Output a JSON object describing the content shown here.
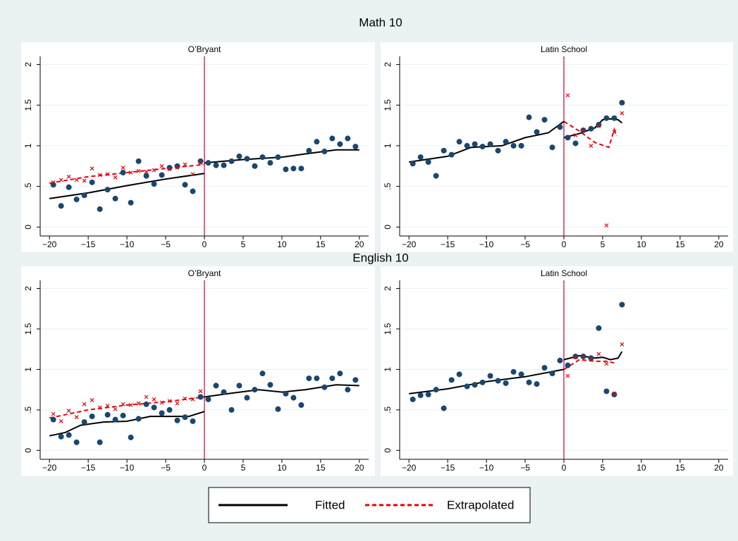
{
  "chart_data": [
    {
      "type": "scatter",
      "group_title": "Math 10",
      "title": "O’Bryant",
      "xlim": [
        -21.2,
        21.2
      ],
      "ylim": [
        -0.11,
        2.1
      ],
      "xticks": [
        {
          "value": -20,
          "label": "−20"
        },
        {
          "value": -15,
          "label": "−15"
        },
        {
          "value": -10,
          "label": "−10"
        },
        {
          "value": -5,
          "label": "−5"
        },
        0,
        5,
        10,
        15,
        20
      ],
      "yticks": [
        0,
        {
          "value": 0.5,
          "label": ".5"
        },
        1,
        1.5,
        2
      ],
      "grid": true,
      "vline": 0,
      "vline_color": "#c10534",
      "series": [
        {
          "name": "Fitted",
          "color": "#000000",
          "style": "solid",
          "x": [
            -20,
            -15,
            -10,
            -5,
            0,
            0,
            0,
            5,
            10,
            13,
            17,
            20
          ],
          "values": [
            0.35,
            0.42,
            0.51,
            0.59,
            0.66,
            null,
            0.79,
            0.83,
            0.86,
            0.9,
            0.95,
            0.95
          ]
        },
        {
          "name": "Extrapolated",
          "color": "#e8000b",
          "style": "dashed",
          "x": [
            -20,
            -15,
            -10,
            -5,
            0
          ],
          "values": [
            0.54,
            0.62,
            0.67,
            0.72,
            0.77
          ]
        },
        {
          "marker": "circle",
          "color": "#1a476f",
          "x": [
            -19.5,
            -18.5,
            -17.5,
            -16.5,
            -15.5,
            -14.5,
            -13.5,
            -12.5,
            -11.5,
            -10.5,
            -9.5,
            -8.5,
            -7.5,
            -6.5,
            -5.5,
            -4.5,
            -3.5,
            -2.5,
            -1.5,
            -0.5,
            0.5,
            1.5,
            2.5,
            3.5,
            4.5,
            5.5,
            6.5,
            7.5,
            8.5,
            9.5,
            10.5,
            11.5,
            12.5,
            13.5,
            14.5,
            15.5,
            16.5,
            17.5,
            18.5,
            19.5
          ],
          "values": [
            0.52,
            0.26,
            0.49,
            0.34,
            0.39,
            0.55,
            0.22,
            0.46,
            0.35,
            0.67,
            0.3,
            0.81,
            0.63,
            0.53,
            0.64,
            0.73,
            0.75,
            0.52,
            0.44,
            0.81,
            0.79,
            0.76,
            0.76,
            0.81,
            0.87,
            0.84,
            0.75,
            0.86,
            0.79,
            0.86,
            0.71,
            0.72,
            0.72,
            0.94,
            1.05,
            0.93,
            1.09,
            1.02,
            1.09,
            0.99
          ]
        },
        {
          "marker": "x",
          "color": "#e8000b",
          "x": [
            -19.5,
            -18.5,
            -17.5,
            -16.5,
            -15.5,
            -14.5,
            -13.5,
            -12.5,
            -11.5,
            -10.5,
            -9.5,
            -8.5,
            -7.5,
            -6.5,
            -5.5,
            -4.5,
            -3.5,
            -2.5,
            -1.5,
            -0.5
          ],
          "values": [
            0.55,
            0.58,
            0.62,
            0.58,
            0.57,
            0.72,
            0.64,
            0.65,
            0.61,
            0.73,
            0.67,
            0.69,
            0.68,
            0.7,
            0.75,
            0.71,
            0.73,
            0.77,
            0.65,
            0.79
          ]
        }
      ]
    },
    {
      "type": "scatter",
      "title": "Latin School",
      "xlim": [
        -21.2,
        21.2
      ],
      "ylim": [
        -0.11,
        2.1
      ],
      "xticks": [
        {
          "value": -20,
          "label": "−20"
        },
        {
          "value": -15,
          "label": "−15"
        },
        {
          "value": -10,
          "label": "−10"
        },
        {
          "value": -5,
          "label": "−5"
        },
        0,
        5,
        10,
        15,
        20
      ],
      "yticks": [
        0,
        {
          "value": 0.5,
          "label": ".5"
        },
        1,
        1.5,
        2
      ],
      "grid": true,
      "vline": 0,
      "vline_color": "#c10534",
      "series": [
        {
          "name": "Fitted",
          "color": "#000000",
          "style": "solid",
          "x": [
            -20,
            -15,
            -12,
            -8,
            -5,
            -2,
            0,
            0,
            0,
            2,
            4,
            5,
            6,
            7,
            7.5
          ],
          "values": [
            0.8,
            0.87,
            0.98,
            1.0,
            1.1,
            1.16,
            1.3,
            null,
            1.1,
            1.15,
            1.22,
            1.32,
            1.33,
            1.32,
            1.28
          ]
        },
        {
          "name": "Extrapolated",
          "color": "#e8000b",
          "style": "dashed",
          "x": [
            0,
            2,
            4,
            5.8,
            6.5,
            6.8
          ],
          "values": [
            1.3,
            1.18,
            1.04,
            0.98,
            1.2,
            1.12
          ]
        },
        {
          "marker": "circle",
          "color": "#1a476f",
          "x": [
            -19.5,
            -18.5,
            -17.5,
            -16.5,
            -15.5,
            -14.5,
            -13.5,
            -12.5,
            -11.5,
            -10.5,
            -9.5,
            -8.5,
            -7.5,
            -6.5,
            -5.5,
            -4.5,
            -3.5,
            -2.5,
            -1.5,
            -0.5,
            0.5,
            1.5,
            2.5,
            3.5,
            4.5,
            5.5,
            6.5,
            7.5
          ],
          "values": [
            0.78,
            0.86,
            0.8,
            0.63,
            0.94,
            0.89,
            1.05,
            1.0,
            1.02,
            0.99,
            1.02,
            0.94,
            1.05,
            1.0,
            1.0,
            1.35,
            1.17,
            1.32,
            0.98,
            1.23,
            1.1,
            1.03,
            1.19,
            1.21,
            1.26,
            1.34,
            1.34,
            1.53
          ]
        },
        {
          "marker": "x",
          "color": "#e8000b",
          "x": [
            0.5,
            1.5,
            2.5,
            3.5,
            4.5,
            5.5,
            6.5,
            7.5
          ],
          "values": [
            1.62,
            1.13,
            1.19,
            1.0,
            1.24,
            0.02,
            1.17,
            1.4
          ]
        }
      ]
    },
    {
      "type": "scatter",
      "group_title": "English 10",
      "title": "O’Bryant",
      "xlim": [
        -21.2,
        21.2
      ],
      "ylim": [
        -0.11,
        2.1
      ],
      "xticks": [
        {
          "value": -20,
          "label": "−20"
        },
        {
          "value": -15,
          "label": "−15"
        },
        {
          "value": -10,
          "label": "−10"
        },
        {
          "value": -5,
          "label": "−5"
        },
        0,
        5,
        10,
        15,
        20
      ],
      "yticks": [
        0,
        {
          "value": 0.5,
          "label": ".5"
        },
        1,
        1.5,
        2
      ],
      "grid": true,
      "vline": 0,
      "vline_color": "#c10534",
      "series": [
        {
          "name": "Fitted",
          "color": "#000000",
          "style": "solid",
          "x": [
            -20,
            -18,
            -16,
            -13,
            -10,
            -7,
            -4,
            -2,
            0,
            0,
            0,
            3,
            7,
            10,
            13,
            17,
            20
          ],
          "values": [
            0.18,
            0.22,
            0.31,
            0.35,
            0.36,
            0.42,
            0.42,
            0.42,
            0.48,
            null,
            0.66,
            0.7,
            0.75,
            0.72,
            0.75,
            0.81,
            0.8
          ]
        },
        {
          "name": "Extrapolated",
          "color": "#e8000b",
          "style": "dashed",
          "x": [
            -20,
            -15,
            -10,
            -5,
            0
          ],
          "values": [
            0.4,
            0.5,
            0.56,
            0.6,
            0.66
          ]
        },
        {
          "marker": "circle",
          "color": "#1a476f",
          "x": [
            -19.5,
            -18.5,
            -17.5,
            -16.5,
            -15.5,
            -14.5,
            -13.5,
            -12.5,
            -11.5,
            -10.5,
            -9.5,
            -8.5,
            -7.5,
            -6.5,
            -5.5,
            -4.5,
            -3.5,
            -2.5,
            -1.5,
            -0.5,
            0.5,
            1.5,
            2.5,
            3.5,
            4.5,
            5.5,
            6.5,
            7.5,
            8.5,
            9.5,
            10.5,
            11.5,
            12.5,
            13.5,
            14.5,
            15.5,
            16.5,
            17.5,
            18.5,
            19.5
          ],
          "values": [
            0.38,
            0.17,
            0.19,
            0.1,
            0.35,
            0.42,
            0.1,
            0.44,
            0.38,
            0.43,
            0.16,
            0.39,
            0.57,
            0.53,
            0.46,
            0.5,
            0.37,
            0.41,
            0.36,
            0.66,
            0.63,
            0.8,
            0.72,
            0.5,
            0.8,
            0.65,
            0.75,
            0.95,
            0.81,
            0.51,
            0.7,
            0.65,
            0.56,
            0.89,
            0.89,
            0.78,
            0.89,
            0.95,
            0.75,
            0.87
          ]
        },
        {
          "marker": "x",
          "color": "#e8000b",
          "x": [
            -19.5,
            -18.5,
            -17.5,
            -16.5,
            -15.5,
            -14.5,
            -13.5,
            -12.5,
            -11.5,
            -10.5,
            -9.5,
            -8.5,
            -7.5,
            -6.5,
            -5.5,
            -4.5,
            -3.5,
            -2.5,
            -1.5,
            -0.5
          ],
          "values": [
            0.45,
            0.36,
            0.49,
            0.41,
            0.57,
            0.62,
            0.53,
            0.55,
            0.51,
            0.57,
            0.56,
            0.58,
            0.66,
            0.63,
            0.59,
            0.61,
            0.58,
            0.64,
            0.63,
            0.73
          ]
        }
      ]
    },
    {
      "type": "scatter",
      "title": "Latin School",
      "xlim": [
        -21.2,
        21.2
      ],
      "ylim": [
        -0.11,
        2.1
      ],
      "xticks": [
        {
          "value": -20,
          "label": "−20"
        },
        {
          "value": -15,
          "label": "−15"
        },
        {
          "value": -10,
          "label": "−10"
        },
        {
          "value": -5,
          "label": "−5"
        },
        0,
        5,
        10,
        15,
        20
      ],
      "yticks": [
        0,
        {
          "value": 0.5,
          "label": ".5"
        },
        1,
        1.5,
        2
      ],
      "grid": true,
      "vline": 0,
      "vline_color": "#c10534",
      "series": [
        {
          "name": "Fitted",
          "color": "#000000",
          "style": "solid",
          "x": [
            -20,
            -15,
            -10,
            -5,
            0,
            0,
            0,
            2,
            4,
            5,
            6,
            7,
            7.5
          ],
          "values": [
            0.7,
            0.76,
            0.85,
            0.91,
            1.0,
            null,
            1.12,
            1.17,
            1.14,
            1.15,
            1.12,
            1.14,
            1.22
          ]
        },
        {
          "name": "Extrapolated",
          "color": "#e8000b",
          "style": "dashed",
          "x": [
            0,
            2,
            4,
            5.5,
            6.5
          ],
          "values": [
            1.0,
            1.12,
            1.1,
            1.1,
            1.08
          ]
        },
        {
          "marker": "circle",
          "color": "#1a476f",
          "x": [
            -19.5,
            -18.5,
            -17.5,
            -16.5,
            -15.5,
            -14.5,
            -13.5,
            -12.5,
            -11.5,
            -10.5,
            -9.5,
            -8.5,
            -7.5,
            -6.5,
            -5.5,
            -4.5,
            -3.5,
            -2.5,
            -1.5,
            -0.5,
            0.5,
            1.5,
            2.5,
            3.5,
            4.5,
            5.5,
            6.5,
            7.5
          ],
          "values": [
            0.63,
            0.68,
            0.69,
            0.75,
            0.52,
            0.87,
            0.94,
            0.79,
            0.81,
            0.84,
            0.92,
            0.86,
            0.83,
            0.97,
            0.94,
            0.84,
            0.82,
            1.02,
            0.95,
            1.11,
            1.05,
            1.16,
            1.16,
            1.14,
            1.51,
            0.73,
            0.69,
            1.8
          ]
        },
        {
          "marker": "x",
          "color": "#e8000b",
          "x": [
            0.5,
            1.5,
            2.5,
            3.5,
            4.5,
            5.5,
            6.5,
            7.5
          ],
          "values": [
            0.92,
            1.15,
            1.16,
            1.13,
            1.19,
            1.07,
            0.7,
            1.31
          ]
        }
      ]
    }
  ]
}
